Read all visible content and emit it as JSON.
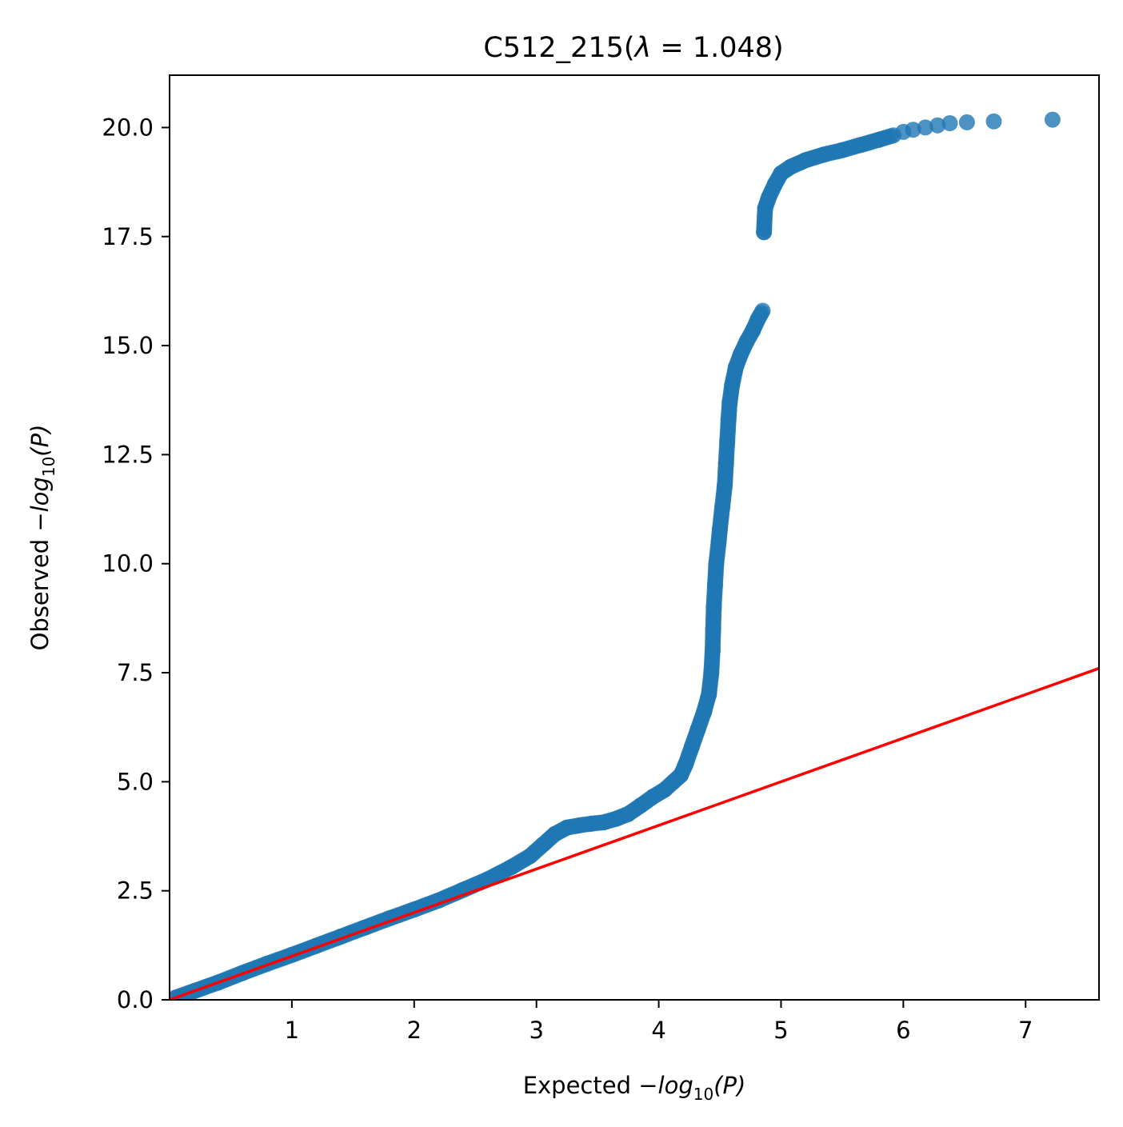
{
  "chart_data": {
    "type": "scatter",
    "title": {
      "name": "C512_215",
      "lambda_value": "1.048",
      "symbol": "λ",
      "eq": " = "
    },
    "xlabel": {
      "prefix": "Expected −",
      "log": "log",
      "sub": "10",
      "arg": "(P)"
    },
    "ylabel": {
      "prefix": "Observed −",
      "log": "log",
      "sub": "10",
      "arg": "(P)"
    },
    "xlim": [
      0,
      7.6
    ],
    "ylim": [
      0,
      21.2
    ],
    "x_ticks": [
      1,
      2,
      3,
      4,
      5,
      6,
      7
    ],
    "x_tick_labels": [
      "1",
      "2",
      "3",
      "4",
      "5",
      "6",
      "7"
    ],
    "y_ticks": [
      0,
      2.5,
      5,
      7.5,
      10,
      12.5,
      15,
      17.5,
      20
    ],
    "y_tick_labels": [
      "0.0",
      "2.5",
      "5.0",
      "7.5",
      "10.0",
      "12.5",
      "15.0",
      "17.5",
      "20.0"
    ],
    "grid": false,
    "colors": {
      "points": "#1f77b4",
      "reference_line": "#ff0000"
    },
    "reference_line": {
      "x": [
        0,
        7.6
      ],
      "y": [
        0,
        7.6
      ]
    },
    "series": [
      {
        "points": [
          [
            0.05,
            0.05
          ],
          [
            0.2,
            0.2
          ],
          [
            0.4,
            0.4
          ],
          [
            0.6,
            0.62
          ],
          [
            0.8,
            0.83
          ],
          [
            1.0,
            1.03
          ],
          [
            1.2,
            1.24
          ],
          [
            1.4,
            1.45
          ],
          [
            1.6,
            1.66
          ],
          [
            1.8,
            1.87
          ],
          [
            2.0,
            2.07
          ],
          [
            2.2,
            2.28
          ],
          [
            2.4,
            2.52
          ],
          [
            2.6,
            2.76
          ],
          [
            2.8,
            3.05
          ],
          [
            2.95,
            3.3
          ],
          [
            3.05,
            3.55
          ],
          [
            3.15,
            3.8
          ],
          [
            3.25,
            3.95
          ],
          [
            3.35,
            4.0
          ],
          [
            3.45,
            4.04
          ],
          [
            3.55,
            4.07
          ],
          [
            3.65,
            4.15
          ],
          [
            3.75,
            4.26
          ],
          [
            3.85,
            4.45
          ],
          [
            3.95,
            4.65
          ],
          [
            4.05,
            4.82
          ],
          [
            4.12,
            5.0
          ],
          [
            4.18,
            5.15
          ],
          [
            4.22,
            5.4
          ],
          [
            4.27,
            5.8
          ],
          [
            4.32,
            6.2
          ],
          [
            4.37,
            6.6
          ],
          [
            4.41,
            7.0
          ],
          [
            4.43,
            7.5
          ],
          [
            4.44,
            8.0
          ],
          [
            4.445,
            8.5
          ],
          [
            4.45,
            9.0
          ],
          [
            4.46,
            9.5
          ],
          [
            4.47,
            10.0
          ],
          [
            4.49,
            10.5
          ],
          [
            4.5,
            10.8
          ],
          [
            4.52,
            11.3
          ],
          [
            4.54,
            11.8
          ],
          [
            4.55,
            12.3
          ],
          [
            4.56,
            12.8
          ],
          [
            4.57,
            13.3
          ],
          [
            4.58,
            13.7
          ],
          [
            4.6,
            14.1
          ],
          [
            4.63,
            14.5
          ],
          [
            4.67,
            14.8
          ],
          [
            4.72,
            15.1
          ],
          [
            4.77,
            15.35
          ],
          [
            4.81,
            15.6
          ],
          [
            4.85,
            15.8
          ],
          [
            4.86,
            17.6
          ],
          [
            4.87,
            18.15
          ],
          [
            4.9,
            18.4
          ],
          [
            4.95,
            18.7
          ],
          [
            5.0,
            18.95
          ],
          [
            5.08,
            19.1
          ],
          [
            5.2,
            19.25
          ],
          [
            5.35,
            19.38
          ],
          [
            5.5,
            19.48
          ],
          [
            5.65,
            19.6
          ],
          [
            5.8,
            19.72
          ],
          [
            5.92,
            19.82
          ],
          [
            6.0,
            19.9
          ],
          [
            6.08,
            19.95
          ],
          [
            6.18,
            20.0
          ],
          [
            6.28,
            20.05
          ],
          [
            6.38,
            20.1
          ],
          [
            6.52,
            20.12
          ],
          [
            6.74,
            20.14
          ],
          [
            7.22,
            20.18
          ]
        ]
      }
    ]
  }
}
